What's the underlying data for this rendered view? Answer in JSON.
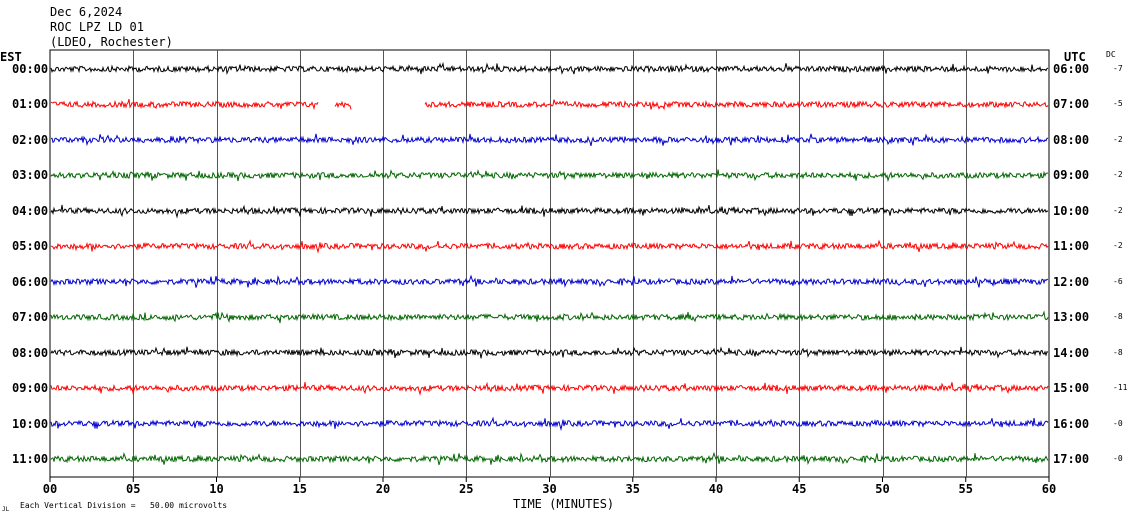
{
  "header": {
    "date": "Dec 6,2024",
    "station": "ROC LPZ LD 01",
    "network": "(LDEO, Rochester)"
  },
  "left_axis_title": "EST",
  "right_axis_title": "UTC",
  "dc_title": "DC",
  "colors": {
    "trace_cycle": [
      "#000000",
      "#ff0000",
      "#0000cc",
      "#006600"
    ],
    "grid": "#000000",
    "background": "#ffffff"
  },
  "chart_data": {
    "type": "line",
    "title": "ROC LPZ LD 01",
    "xlabel": "TIME (MINUTES)",
    "xlim": [
      0,
      60
    ],
    "x_ticks": [
      "00",
      "05",
      "10",
      "15",
      "20",
      "25",
      "30",
      "35",
      "40",
      "45",
      "50",
      "55",
      "60"
    ],
    "amplitude_scale": "Each Vertical Division =   50.00 microvolts",
    "series": [
      {
        "est": "00:00",
        "utc": "06:00",
        "dc": "-7"
      },
      {
        "est": "01:00",
        "utc": "07:00",
        "dc": "-5",
        "gaps": [
          [
            16.1,
            17.1
          ],
          [
            18.1,
            22.5
          ]
        ]
      },
      {
        "est": "02:00",
        "utc": "08:00",
        "dc": "-2"
      },
      {
        "est": "03:00",
        "utc": "09:00",
        "dc": "-2"
      },
      {
        "est": "04:00",
        "utc": "10:00",
        "dc": "-2"
      },
      {
        "est": "05:00",
        "utc": "11:00",
        "dc": "-2"
      },
      {
        "est": "06:00",
        "utc": "12:00",
        "dc": "-6"
      },
      {
        "est": "07:00",
        "utc": "13:00",
        "dc": "-8"
      },
      {
        "est": "08:00",
        "utc": "14:00",
        "dc": "-8"
      },
      {
        "est": "09:00",
        "utc": "15:00",
        "dc": "-11"
      },
      {
        "est": "10:00",
        "utc": "16:00",
        "dc": "-0"
      },
      {
        "est": "11:00",
        "utc": "17:00",
        "dc": "-0"
      }
    ]
  },
  "footer": {
    "corner_mark": "JL"
  }
}
